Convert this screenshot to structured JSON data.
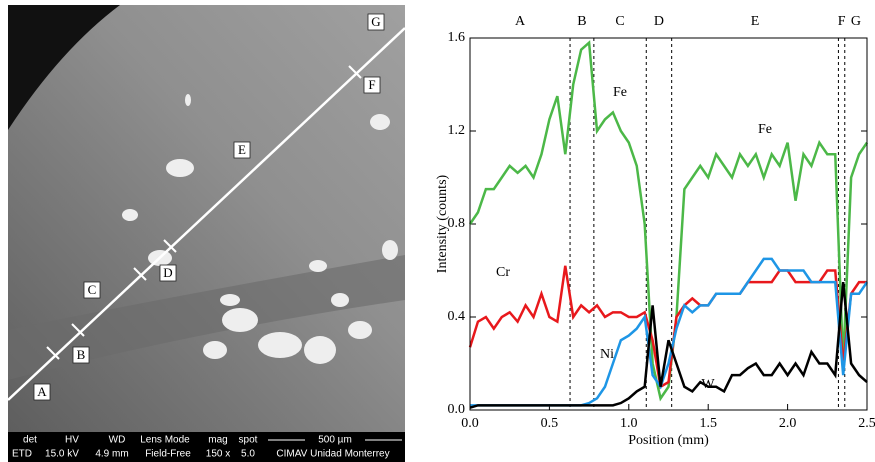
{
  "micrograph": {
    "labels": [
      "G",
      "F",
      "E",
      "D",
      "C",
      "B",
      "A"
    ],
    "info_header": [
      "det",
      "HV",
      "WD",
      "Lens Mode",
      "mag",
      "spot",
      "500 µm"
    ],
    "info_values": [
      "ETD",
      "15.0 kV",
      "4.9 mm",
      "Field-Free",
      "150 x",
      "5.0",
      "CIMAV Unidad Monterrey"
    ]
  },
  "chart_data": {
    "type": "line",
    "x_label": "Position  (mm)",
    "y_label": "Intensity (counts)",
    "xlim": [
      0,
      2.5
    ],
    "ylim": [
      0,
      1.6
    ],
    "xticks": [
      {
        "value": 0,
        "label": "0.0"
      },
      0.5,
      {
        "value": 1,
        "label": "1.0"
      },
      1.5,
      {
        "value": 2,
        "label": "2.0"
      },
      2.5
    ],
    "yticks": [
      {
        "value": 0,
        "label": "0.0"
      },
      0.4,
      0.8,
      1.2,
      1.6
    ],
    "regions": [
      "A",
      "B",
      "C",
      "D",
      "E",
      "F",
      "G"
    ],
    "boundaries": [
      0.63,
      0.78,
      1.11,
      1.27,
      2.32,
      2.36
    ],
    "x": [
      0,
      0.05,
      0.1,
      0.15,
      0.2,
      0.25,
      0.3,
      0.35,
      0.4,
      0.45,
      0.5,
      0.55,
      0.6,
      0.65,
      0.7,
      0.75,
      0.8,
      0.85,
      0.9,
      0.95,
      1.0,
      1.05,
      1.1,
      1.15,
      1.2,
      1.25,
      1.3,
      1.35,
      1.4,
      1.45,
      1.5,
      1.55,
      1.6,
      1.65,
      1.7,
      1.75,
      1.8,
      1.85,
      1.9,
      1.95,
      2.0,
      2.05,
      2.1,
      2.15,
      2.2,
      2.25,
      2.3,
      2.35,
      2.4,
      2.45,
      2.5
    ],
    "series": [
      {
        "name": "Fe",
        "color": "#4cb848",
        "values": [
          0.8,
          0.85,
          0.95,
          0.95,
          1.0,
          1.05,
          1.02,
          1.05,
          1.0,
          1.1,
          1.25,
          1.35,
          1.1,
          1.4,
          1.55,
          1.58,
          1.2,
          1.25,
          1.28,
          1.2,
          1.15,
          1.05,
          0.8,
          0.2,
          0.05,
          0.1,
          0.4,
          0.95,
          1.0,
          1.05,
          1.0,
          1.1,
          1.05,
          1.0,
          1.1,
          1.05,
          1.1,
          1.0,
          1.1,
          1.05,
          1.15,
          0.9,
          1.1,
          1.05,
          1.15,
          1.1,
          1.1,
          0.2,
          1.0,
          1.1,
          1.15
        ]
      },
      {
        "name": "Cr",
        "color": "#e8181c",
        "values": [
          0.27,
          0.38,
          0.4,
          0.35,
          0.4,
          0.42,
          0.38,
          0.45,
          0.4,
          0.5,
          0.4,
          0.38,
          0.62,
          0.4,
          0.45,
          0.42,
          0.45,
          0.4,
          0.42,
          0.42,
          0.4,
          0.4,
          0.42,
          0.3,
          0.1,
          0.12,
          0.4,
          0.45,
          0.48,
          0.45,
          0.45,
          0.5,
          0.5,
          0.5,
          0.5,
          0.55,
          0.55,
          0.55,
          0.55,
          0.6,
          0.6,
          0.55,
          0.55,
          0.55,
          0.55,
          0.6,
          0.6,
          0.2,
          0.5,
          0.55,
          0.55
        ]
      },
      {
        "name": "Ni",
        "color": "#1e96e6",
        "values": [
          0.02,
          0.02,
          0.02,
          0.02,
          0.02,
          0.02,
          0.02,
          0.02,
          0.02,
          0.02,
          0.02,
          0.02,
          0.02,
          0.02,
          0.02,
          0.03,
          0.05,
          0.1,
          0.2,
          0.3,
          0.32,
          0.35,
          0.4,
          0.15,
          0.1,
          0.2,
          0.35,
          0.45,
          0.42,
          0.45,
          0.45,
          0.5,
          0.5,
          0.5,
          0.5,
          0.55,
          0.6,
          0.65,
          0.65,
          0.6,
          0.6,
          0.6,
          0.6,
          0.55,
          0.55,
          0.55,
          0.55,
          0.15,
          0.5,
          0.5,
          0.55
        ]
      },
      {
        "name": "W",
        "color": "#000000",
        "values": [
          0.01,
          0.02,
          0.02,
          0.02,
          0.02,
          0.02,
          0.02,
          0.02,
          0.02,
          0.02,
          0.02,
          0.02,
          0.02,
          0.02,
          0.02,
          0.02,
          0.02,
          0.02,
          0.02,
          0.03,
          0.05,
          0.08,
          0.1,
          0.45,
          0.1,
          0.3,
          0.2,
          0.1,
          0.08,
          0.12,
          0.1,
          0.1,
          0.08,
          0.15,
          0.15,
          0.18,
          0.2,
          0.15,
          0.15,
          0.2,
          0.15,
          0.2,
          0.15,
          0.25,
          0.2,
          0.2,
          0.15,
          0.55,
          0.2,
          0.15,
          0.12
        ]
      }
    ]
  }
}
